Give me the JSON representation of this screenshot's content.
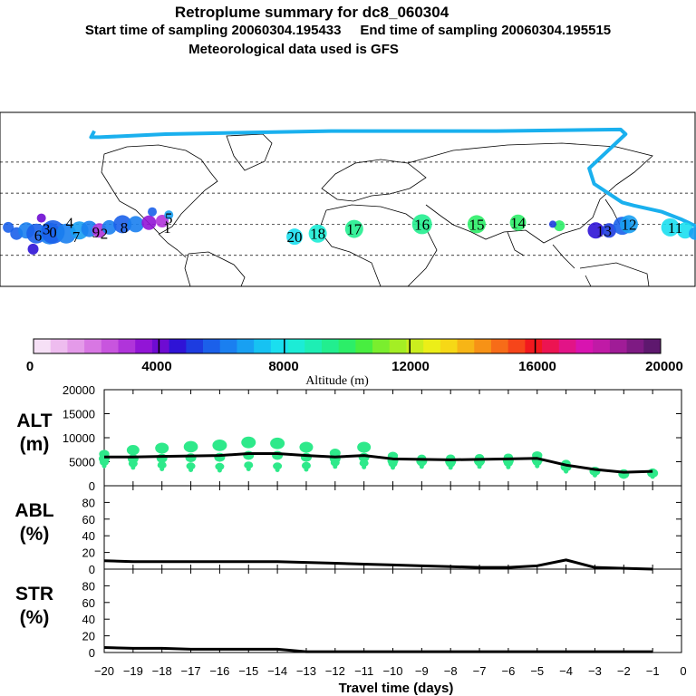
{
  "header": {
    "title": "Retroplume summary for dc8_060304",
    "start_label": "Start time of sampling 20060304.195433",
    "end_label": "End time of sampling 20060304.195515",
    "met_label": "Meteorological data used is GFS"
  },
  "colors": {
    "flight_track": "#1ab0ee",
    "plume_green": "#2ee98a",
    "line": "#000000"
  },
  "colorbar": {
    "label": "Altitude (m)",
    "ticks": [
      "0",
      "4000",
      "8000",
      "12000",
      "16000",
      "20000"
    ],
    "colors": [
      "#f6e0f6",
      "#eebcef",
      "#e49ae9",
      "#d877e3",
      "#c855de",
      "#b034da",
      "#9215d6",
      "#6e0bd2",
      "#2f13d6",
      "#1d3ce0",
      "#1b60ea",
      "#1a7ff0",
      "#18a0f2",
      "#17c2f2",
      "#1adfef",
      "#1cecd6",
      "#1eeeb4",
      "#22ee8f",
      "#2cee68",
      "#48ee40",
      "#7aee2e",
      "#a4ee24",
      "#cbee1e",
      "#ecee18",
      "#f6d816",
      "#f7b516",
      "#f79216",
      "#f76c18",
      "#f6451a",
      "#f2181e",
      "#ec1452",
      "#e21487",
      "#d814b0",
      "#c01aa6",
      "#a01c97",
      "#7e1a83",
      "#5e186e"
    ]
  },
  "map": {
    "day_labels": [
      {
        "text": "20",
        "lon": -22,
        "lat": 12
      },
      {
        "text": "18",
        "lon": -8,
        "lat": 14
      },
      {
        "text": "17",
        "lon": 14,
        "lat": 17
      },
      {
        "text": "16",
        "lon": 55,
        "lat": 20
      },
      {
        "text": "15",
        "lon": 88,
        "lat": 20
      },
      {
        "text": "14",
        "lon": 113,
        "lat": 21
      },
      {
        "text": "13",
        "lon": 165,
        "lat": 16
      },
      {
        "text": "12",
        "lon": 180,
        "lat": 20
      },
      {
        "text": "11",
        "lon": 208,
        "lat": 18
      },
      {
        "text": "9",
        "lon": -142,
        "lat": 15
      },
      {
        "text": "8",
        "lon": -125,
        "lat": 18
      },
      {
        "text": "7",
        "lon": -154,
        "lat": 12
      },
      {
        "text": "6",
        "lon": -177,
        "lat": 13
      },
      {
        "text": "5",
        "lon": -98,
        "lat": 24
      },
      {
        "text": "4",
        "lon": -158,
        "lat": 21
      },
      {
        "text": "3",
        "lon": -172,
        "lat": 17
      },
      {
        "text": "2",
        "lon": -137,
        "lat": 14
      },
      {
        "text": "1",
        "lon": -99,
        "lat": 18
      },
      {
        "text": "0",
        "lon": -168,
        "lat": 15
      }
    ]
  },
  "chart_data": [
    {
      "type": "line",
      "panel": "ALT",
      "ylabel": "ALT\n(m)",
      "ylabel_lines": [
        "ALT",
        "(m)"
      ],
      "ylim": [
        0,
        20000
      ],
      "yticks": [
        "0",
        "5000",
        "10000",
        "15000",
        "20000"
      ],
      "x": [
        -20,
        -19,
        -18,
        -17,
        -16,
        -15,
        -14,
        -13,
        -12,
        -11,
        -10,
        -9,
        -8,
        -7,
        -6,
        -5,
        -4,
        -3,
        -2,
        -1
      ],
      "series": [
        {
          "name": "mean altitude",
          "values": [
            6000,
            6000,
            6100,
            6200,
            6300,
            6700,
            6700,
            6300,
            6000,
            6300,
            5600,
            5500,
            5400,
            5500,
            5600,
            5700,
            4300,
            3400,
            2800,
            3000
          ]
        },
        {
          "name": "plume top",
          "values": [
            7000,
            7800,
            8200,
            8500,
            8800,
            9400,
            9200,
            8400,
            7200,
            8400,
            6600,
            6100,
            6100,
            6200,
            6300,
            6700,
            5000,
            3600,
            3000,
            3300
          ]
        },
        {
          "name": "plume bottom",
          "values": [
            4900,
            4600,
            4300,
            4100,
            4000,
            4300,
            4100,
            4200,
            4800,
            4700,
            4600,
            4800,
            4600,
            4800,
            4700,
            4900,
            3800,
            3000,
            2700,
            2700
          ]
        }
      ]
    },
    {
      "type": "line",
      "panel": "ABL",
      "ylabel_lines": [
        "ABL",
        "(%)"
      ],
      "ylim": [
        0,
        100
      ],
      "yticks": [
        "0",
        "20",
        "40",
        "60",
        "80"
      ],
      "x": [
        -20,
        -19,
        -18,
        -17,
        -16,
        -15,
        -14,
        -13,
        -12,
        -11,
        -10,
        -9,
        -8,
        -7,
        -6,
        -5,
        -4,
        -3,
        -2,
        -1
      ],
      "series": [
        {
          "name": "ABL fraction",
          "values": [
            10,
            9,
            9,
            9,
            9,
            9,
            9,
            8,
            7,
            6,
            5,
            4,
            3,
            2,
            2,
            4,
            11,
            2,
            1,
            0
          ]
        }
      ]
    },
    {
      "type": "line",
      "panel": "STR",
      "ylabel_lines": [
        "STR",
        "(%)"
      ],
      "ylim": [
        0,
        100
      ],
      "yticks": [
        "0",
        "20",
        "40",
        "60",
        "80"
      ],
      "x": [
        -20,
        -19,
        -18,
        -17,
        -16,
        -15,
        -14,
        -13,
        -12,
        -11,
        -10,
        -9,
        -8,
        -7,
        -6,
        -5,
        -4,
        -3,
        -2,
        -1
      ],
      "series": [
        {
          "name": "STR fraction",
          "values": [
            6,
            5,
            5,
            4,
            4,
            4,
            4,
            1,
            1,
            1,
            1,
            1,
            1,
            1,
            1,
            1,
            1,
            1,
            1,
            1
          ]
        }
      ]
    }
  ],
  "xaxis": {
    "label": "Travel time (days)",
    "ticks": [
      "−20",
      "−19",
      "−18",
      "−17",
      "−16",
      "−15",
      "−14",
      "−13",
      "−12",
      "−11",
      "−10",
      "−9",
      "−8",
      "−7",
      "−6",
      "−5",
      "−4",
      "−3",
      "−2",
      "−1",
      "0"
    ]
  }
}
